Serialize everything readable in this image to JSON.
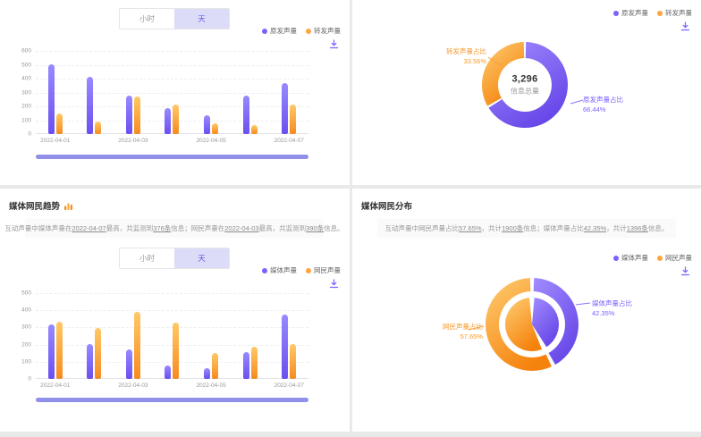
{
  "global": {
    "accent_purple": "#7B61FF",
    "accent_orange": "#FFA53D",
    "toggle_selected_bg": "#DCDCF9",
    "scrollbar_color": "#9090E8"
  },
  "top_left": {
    "toggle": {
      "options": [
        "小时",
        "天"
      ],
      "selected": "天"
    },
    "legend": [
      {
        "label": "原发声量",
        "color": "#7B61FF"
      },
      {
        "label": "转发声量",
        "color": "#FFA53D"
      }
    ],
    "icons": [
      "download-icon"
    ],
    "chart_data": {
      "type": "bar",
      "categories": [
        "2022-04-01",
        "2022-04-02",
        "2022-04-03",
        "2022-04-04",
        "2022-04-05",
        "2022-04-06",
        "2022-04-07"
      ],
      "x_labels_shown": [
        "2022-04-01",
        "2022-04-03",
        "2022-04-05",
        "2022-04-07"
      ],
      "series": [
        {
          "name": "原发声量",
          "color": "#7C5CF0",
          "values": [
            505,
            410,
            280,
            190,
            135,
            275,
            365
          ]
        },
        {
          "name": "转发声量",
          "color": "#FAA21B",
          "values": [
            150,
            90,
            270,
            215,
            80,
            65,
            215
          ]
        }
      ],
      "ylim": [
        0,
        600
      ],
      "ytick_step": 100,
      "grid": true,
      "legend_position": "top-right"
    }
  },
  "top_right": {
    "legend": [
      {
        "label": "原发声量",
        "color": "#7B61FF"
      },
      {
        "label": "转发声量",
        "color": "#FFA53D"
      }
    ],
    "icons": [
      "download-icon"
    ],
    "chart_data": {
      "type": "pie",
      "title": "",
      "center_value": "3,296",
      "center_label": "信息总量",
      "slices": [
        {
          "label": "原发声量占比",
          "pct": 66.44,
          "color": "#7B61FF"
        },
        {
          "label": "转发声量占比",
          "pct": 33.56,
          "color": "#FFA53D"
        }
      ]
    },
    "labels": {
      "left": {
        "title": "转发声量占比",
        "value": "33.56%"
      },
      "right": {
        "title": "原发声量占比",
        "value": "66.44%"
      }
    }
  },
  "bottom_left": {
    "title": "媒体网民趋势",
    "title_icon": "bar-chart-icon",
    "description_tokens": [
      {
        "t": "互动声量中媒体声量在"
      },
      {
        "t": "2022-04-07",
        "em": true
      },
      {
        "t": "最高，共监测到"
      },
      {
        "t": "376条",
        "em": true
      },
      {
        "t": "信息；网民声量在"
      },
      {
        "t": "2022-04-03",
        "em": true
      },
      {
        "t": "最高，共监测到"
      },
      {
        "t": "390条",
        "em": true
      },
      {
        "t": "信息。"
      }
    ],
    "toggle": {
      "options": [
        "小时",
        "天"
      ],
      "selected": "天"
    },
    "legend": [
      {
        "label": "媒体声量",
        "color": "#7B61FF"
      },
      {
        "label": "网民声量",
        "color": "#FFA53D"
      }
    ],
    "icons": [
      "download-icon"
    ],
    "chart_data": {
      "type": "bar",
      "categories": [
        "2022-04-01",
        "2022-04-02",
        "2022-04-03",
        "2022-04-04",
        "2022-04-05",
        "2022-04-06",
        "2022-04-07"
      ],
      "x_labels_shown": [
        "2022-04-01",
        "2022-04-03",
        "2022-04-05",
        "2022-04-07"
      ],
      "series": [
        {
          "name": "媒体声量",
          "color": "#7C5CF0",
          "values": [
            320,
            205,
            170,
            80,
            60,
            155,
            375
          ]
        },
        {
          "name": "网民声量",
          "color": "#FAA21B",
          "values": [
            335,
            295,
            390,
            330,
            150,
            185,
            205
          ]
        }
      ],
      "ylim": [
        0,
        500
      ],
      "ytick_step": 100,
      "grid": true,
      "legend_position": "top-right"
    }
  },
  "bottom_right": {
    "title": "媒体网民分布",
    "description_tokens": [
      {
        "t": "互动声量中网民声量占比"
      },
      {
        "t": "57.65%",
        "em": true
      },
      {
        "t": "，共计"
      },
      {
        "t": "1900条",
        "em": true
      },
      {
        "t": "信息；媒体声量占比"
      },
      {
        "t": "42.35%",
        "em": true
      },
      {
        "t": "，共计"
      },
      {
        "t": "1396条",
        "em": true
      },
      {
        "t": "信息。"
      }
    ],
    "legend": [
      {
        "label": "媒体声量",
        "color": "#7B61FF"
      },
      {
        "label": "网民声量",
        "color": "#FFA53D"
      }
    ],
    "icons": [
      "download-icon"
    ],
    "chart_data": {
      "type": "pie",
      "nested": true,
      "slices": [
        {
          "label": "媒体声量占比",
          "pct": 42.35,
          "color": "#7B61FF"
        },
        {
          "label": "网民声量占比",
          "pct": 57.65,
          "color": "#FFA53D"
        }
      ]
    },
    "labels": {
      "left": {
        "title": "网民声量占比",
        "value": "57.65%"
      },
      "right": {
        "title": "媒体声量占比",
        "value": "42.35%"
      }
    }
  }
}
